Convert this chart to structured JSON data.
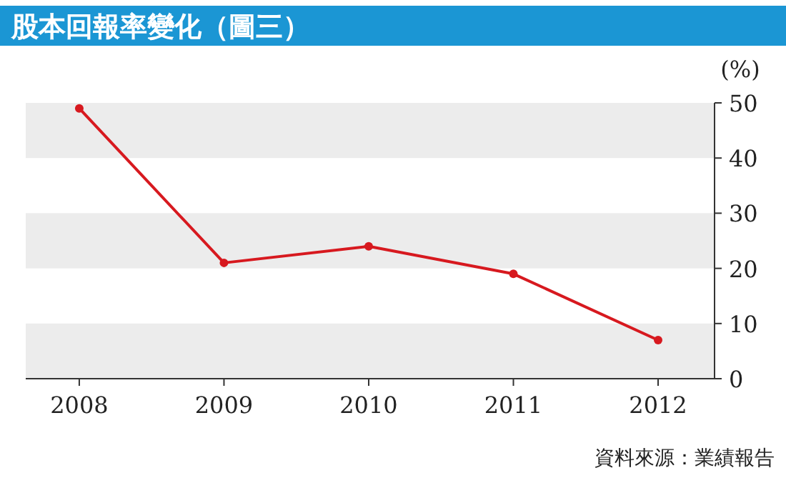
{
  "chart_data": {
    "type": "line",
    "title": "股本回報率變化（圖三）",
    "ylabel": "(%)",
    "categories": [
      "2008",
      "2009",
      "2010",
      "2011",
      "2012"
    ],
    "series": [
      {
        "color": "#d7191f",
        "values": [
          49,
          21,
          24,
          19,
          7
        ]
      }
    ],
    "ylim": [
      0,
      50
    ],
    "yticks": [
      0,
      10,
      20,
      30,
      40,
      50
    ],
    "marker": "circle",
    "line_style": "solid",
    "grid": false,
    "bands": [
      {
        "axis": "y",
        "from": 0,
        "to": 10,
        "color": "#ececec"
      },
      {
        "axis": "y",
        "from": 20,
        "to": 30,
        "color": "#ececec"
      },
      {
        "axis": "y",
        "from": 40,
        "to": 50,
        "color": "#ececec"
      }
    ],
    "annotations": [
      "資料來源：業績報告"
    ]
  }
}
